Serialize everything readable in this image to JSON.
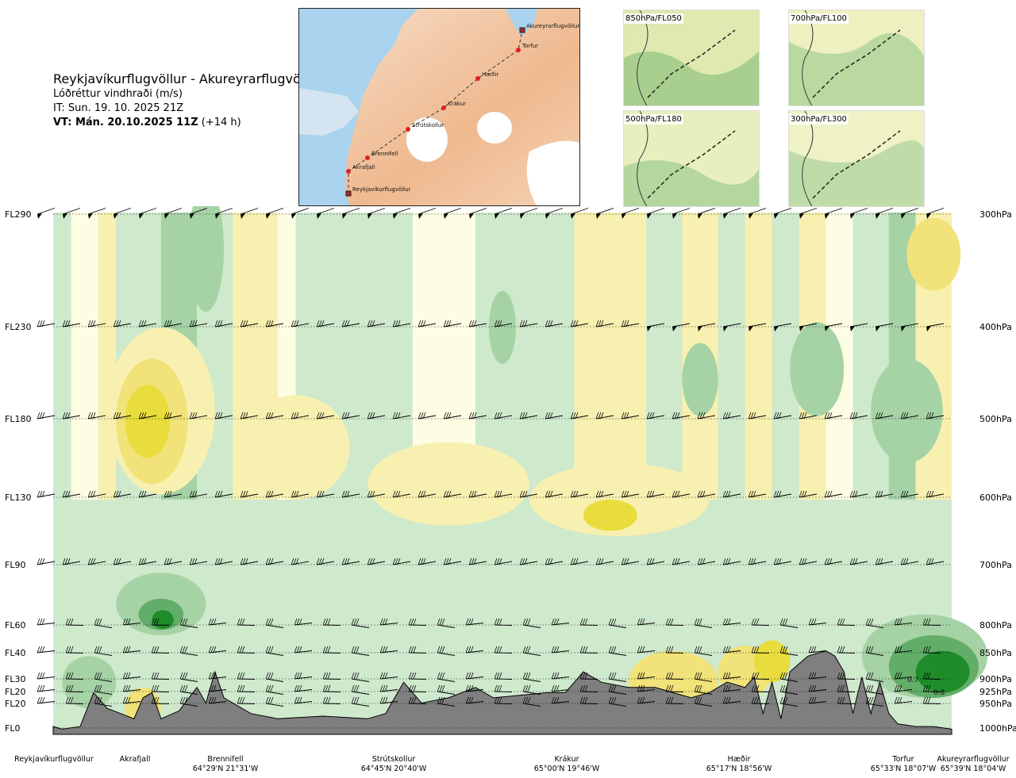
{
  "header": {
    "title": "Reykjavíkurflugvöllur - Akureyrarflugvöllur",
    "subtitle": "Lóðréttur vindhraði (m/s)",
    "it": "IT: Sun. 19. 10. 2025 21Z",
    "vt_bold": "VT: Mán. 20.10.2025 11Z",
    "vt_extra": "(+14 h)"
  },
  "route_map": {
    "points": [
      {
        "name": "Akureyrarflugvöllur",
        "type": "airport"
      },
      {
        "name": "Torfur",
        "type": "waypoint"
      },
      {
        "name": "Hæðir",
        "type": "waypoint"
      },
      {
        "name": "Krákur",
        "type": "waypoint"
      },
      {
        "name": "Strútskollur",
        "type": "waypoint"
      },
      {
        "name": "Brennifell",
        "type": "waypoint"
      },
      {
        "name": "Akrafjall",
        "type": "waypoint"
      },
      {
        "name": "Reykjavíkurflugvöllur",
        "type": "airport"
      }
    ]
  },
  "mini_maps": [
    {
      "label": "850hPa/FL050"
    },
    {
      "label": "700hPa/FL100"
    },
    {
      "label": "500hPa/FL180"
    },
    {
      "label": "300hPa/FL300"
    }
  ],
  "chart_data": {
    "type": "heatmap",
    "title": "Lóðréttur vindhraði (m/s)",
    "levels": [
      {
        "fl": "FL290",
        "hpa": "300hPa"
      },
      {
        "fl": "FL230",
        "hpa": "400hPa"
      },
      {
        "fl": "FL180",
        "hpa": "500hPa"
      },
      {
        "fl": "FL130",
        "hpa": "600hPa"
      },
      {
        "fl": "FL90",
        "hpa": "700hPa"
      },
      {
        "fl": "FL60",
        "hpa": "800hPa"
      },
      {
        "fl": "FL40",
        "hpa": "850hPa"
      },
      {
        "fl": "FL30",
        "hpa": "900hPa"
      },
      {
        "fl": "FL20",
        "hpa": "925hPa"
      },
      {
        "fl": "FL20",
        "hpa": "950hPa"
      },
      {
        "fl": "FL0",
        "hpa": "1000hPa"
      }
    ],
    "waypoints": [
      {
        "name": "Reykjavíkurflugvöllur",
        "coord": ""
      },
      {
        "name": "Akrafjall",
        "coord": ""
      },
      {
        "name": "Brennifell",
        "coord": "64°29'N 21°31'W"
      },
      {
        "name": "Strútskollur",
        "coord": "64°45'N 20°40'W"
      },
      {
        "name": "Krákur",
        "coord": "65°00'N 19°46'W"
      },
      {
        "name": "Hæðir",
        "coord": "65°17'N 18°56'W"
      },
      {
        "name": "Torfur",
        "coord": "65°33'N 18°07'W"
      },
      {
        "name": "Akureyrarflugvöllur",
        "coord": "65°39'N 18°04'W"
      }
    ],
    "annotations": [
      "0.7",
      "0.8"
    ],
    "colors": {
      "up_strong": "#1f8c2a",
      "up_mid": "#62ad68",
      "up_weak": "#a6d3a6",
      "up_light": "#cfe9cd",
      "neutral": "#fdfde4",
      "down_light": "#f8f0b0",
      "down_mid": "#f1e27a",
      "down_strong": "#e8dd3c",
      "terrain": "#7f7f7f"
    }
  }
}
